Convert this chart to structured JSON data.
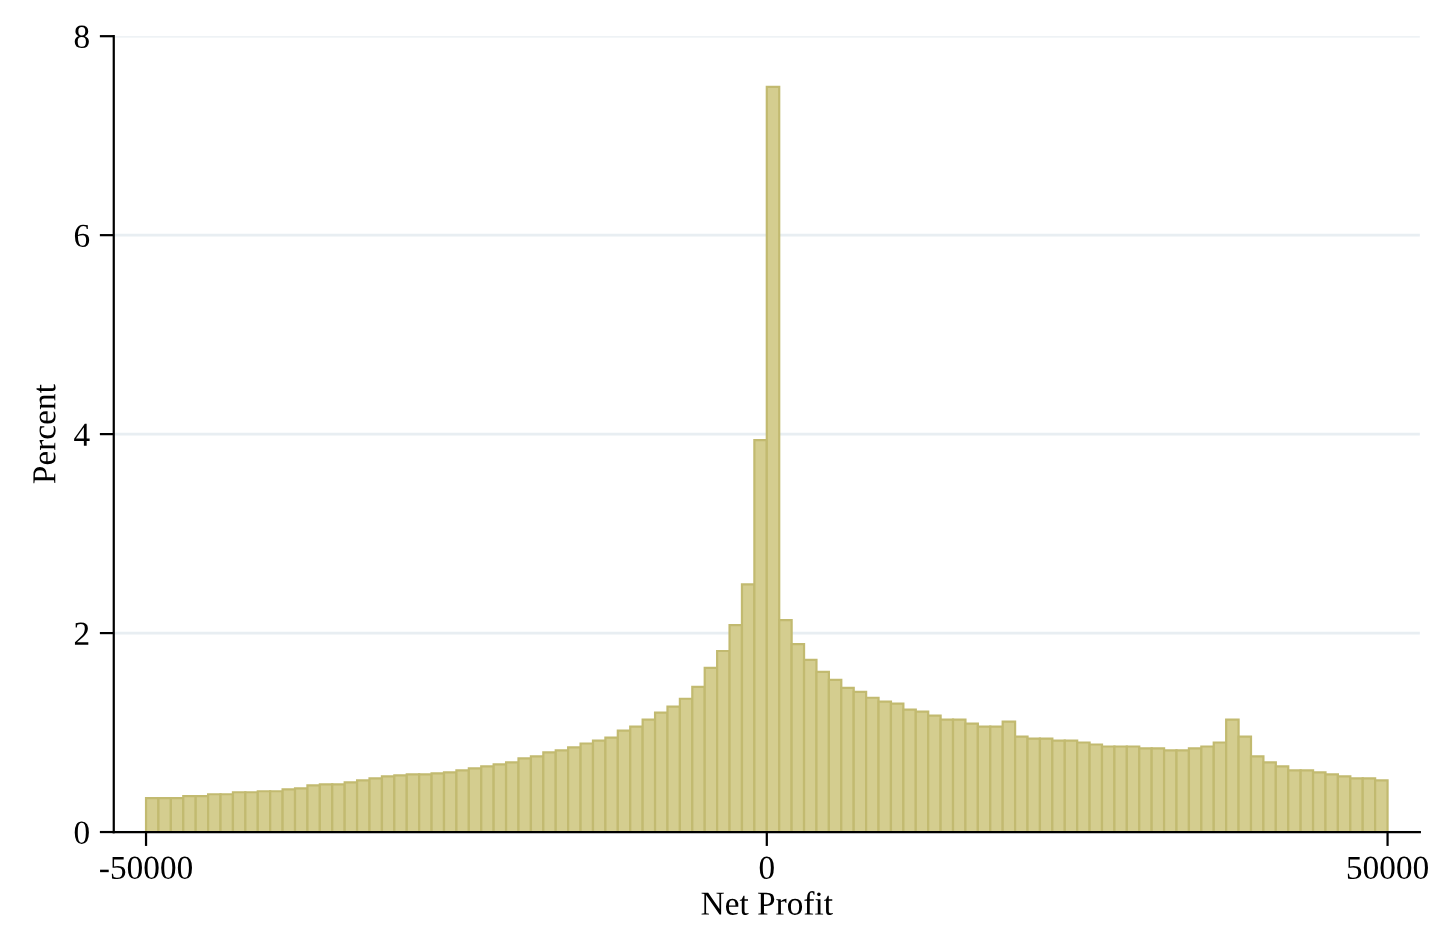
{
  "chart_data": {
    "type": "histogram",
    "xlabel": "Net Profit",
    "ylabel": "Percent",
    "bins": [
      -50000,
      -49000,
      -48000,
      -47000,
      -46000,
      -45000,
      -44000,
      -43000,
      -42000,
      -41000,
      -40000,
      -39000,
      -38000,
      -37000,
      -36000,
      -35000,
      -34000,
      -33000,
      -32000,
      -31000,
      -30000,
      -29000,
      -28000,
      -27000,
      -26000,
      -25000,
      -24000,
      -23000,
      -22000,
      -21000,
      -20000,
      -19000,
      -18000,
      -17000,
      -16000,
      -15000,
      -14000,
      -13000,
      -12000,
      -11000,
      -10000,
      -9000,
      -8000,
      -7000,
      -6000,
      -5000,
      -4000,
      -3000,
      -2000,
      -1000,
      0,
      1000,
      2000,
      3000,
      4000,
      5000,
      6000,
      7000,
      8000,
      9000,
      10000,
      11000,
      12000,
      13000,
      14000,
      15000,
      16000,
      17000,
      18000,
      19000,
      20000,
      21000,
      22000,
      23000,
      24000,
      25000,
      26000,
      27000,
      28000,
      29000,
      30000,
      31000,
      32000,
      33000,
      34000,
      35000,
      36000,
      37000,
      38000,
      39000,
      40000,
      41000,
      42000,
      43000,
      44000,
      45000,
      46000,
      47000,
      48000,
      49000,
      50000
    ],
    "values": [
      0.34,
      0.34,
      0.34,
      0.36,
      0.36,
      0.38,
      0.38,
      0.4,
      0.4,
      0.41,
      0.41,
      0.43,
      0.44,
      0.47,
      0.48,
      0.48,
      0.5,
      0.52,
      0.54,
      0.56,
      0.57,
      0.58,
      0.58,
      0.59,
      0.6,
      0.62,
      0.64,
      0.66,
      0.68,
      0.7,
      0.74,
      0.76,
      0.8,
      0.82,
      0.85,
      0.89,
      0.92,
      0.95,
      1.02,
      1.06,
      1.13,
      1.2,
      1.26,
      1.34,
      1.46,
      1.65,
      1.82,
      2.08,
      2.49,
      3.94,
      7.49,
      2.13,
      1.89,
      1.73,
      1.61,
      1.53,
      1.45,
      1.41,
      1.35,
      1.31,
      1.29,
      1.23,
      1.21,
      1.17,
      1.13,
      1.13,
      1.09,
      1.06,
      1.06,
      1.11,
      0.96,
      0.94,
      0.94,
      0.92,
      0.92,
      0.9,
      0.88,
      0.86,
      0.86,
      0.86,
      0.84,
      0.84,
      0.82,
      0.82,
      0.84,
      0.86,
      0.9,
      1.13,
      0.96,
      0.76,
      0.7,
      0.66,
      0.62,
      0.62,
      0.6,
      0.58,
      0.56,
      0.54,
      0.54,
      0.52
    ],
    "color": "#d4cd8f",
    "xlim": [
      -52600,
      52600
    ],
    "xticks": [
      -50000,
      0,
      50000
    ],
    "ylim": [
      0,
      8
    ],
    "yticks": [
      0,
      2,
      4,
      6,
      8
    ],
    "grid": "y"
  }
}
